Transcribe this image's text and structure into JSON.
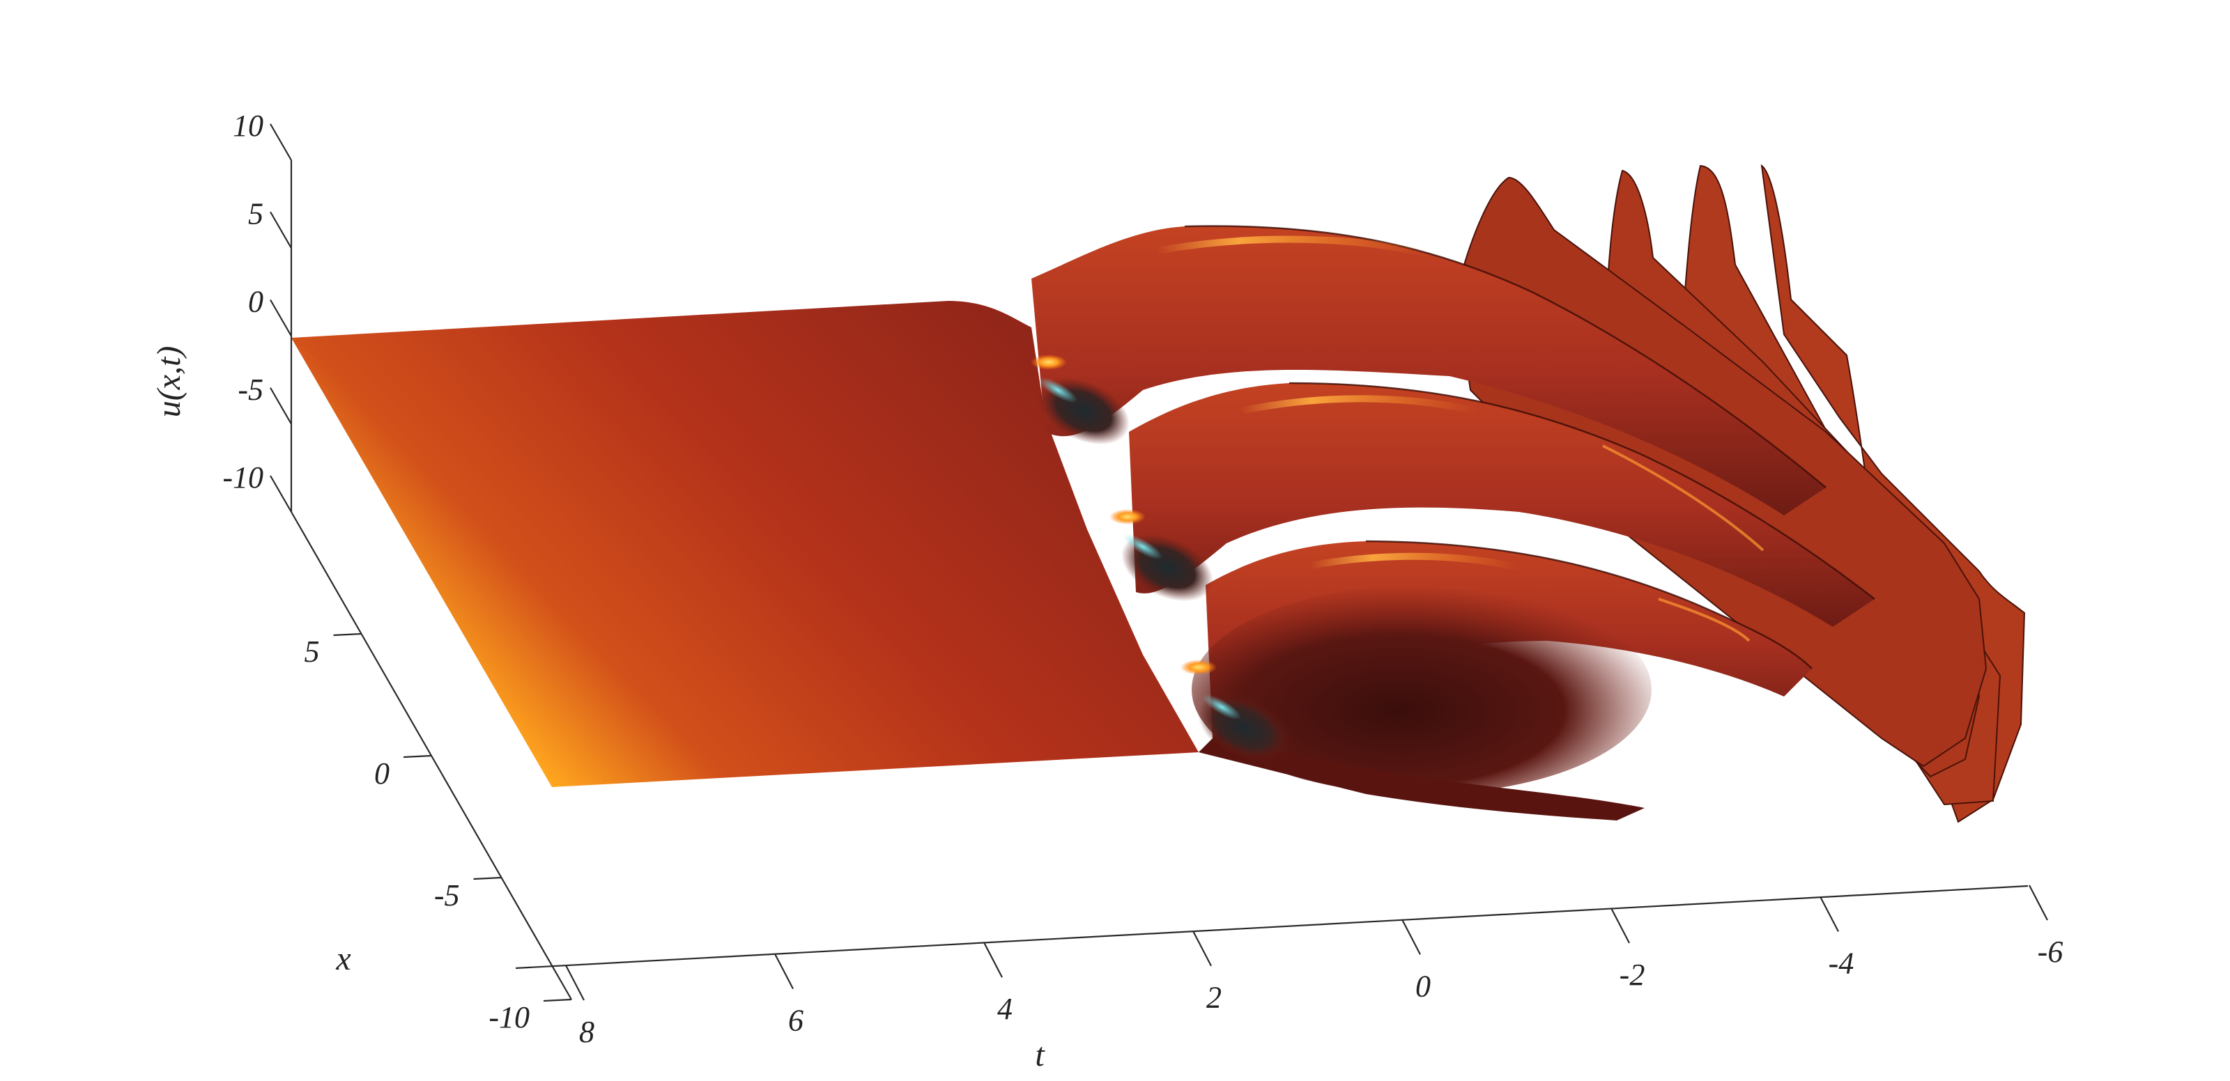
{
  "chart_data": {
    "type": "surface",
    "title": "",
    "xlabel": "t",
    "ylabel": "x",
    "zlabel": "u(x,t)",
    "x_axis": {
      "name": "t",
      "range": [
        -6,
        8
      ],
      "ticks": [
        "8",
        "6",
        "4",
        "2",
        "0",
        "-2",
        "-4",
        "-6"
      ],
      "tick_values": [
        8,
        6,
        4,
        2,
        0,
        -2,
        -4,
        -6
      ]
    },
    "y_axis": {
      "name": "x",
      "range": [
        -10,
        10
      ],
      "ticks": [
        "5",
        "0",
        "-5",
        "-10"
      ],
      "tick_values": [
        5,
        0,
        -5,
        -10
      ]
    },
    "z_axis": {
      "name": "u(x,t)",
      "range": [
        -10,
        10
      ],
      "ticks": [
        "10",
        "5",
        "0",
        "-5",
        "-10"
      ],
      "tick_values": [
        10,
        5,
        0,
        -5,
        -10
      ]
    },
    "grid": false,
    "colormap": [
      "#ffa51e",
      "#b4321a",
      "#4a1210",
      "#5fd2dc"
    ],
    "description_values": {
      "background_plateau_u": -2,
      "front_position_t": 3.5,
      "periodic_ridges_count": 4
    }
  }
}
